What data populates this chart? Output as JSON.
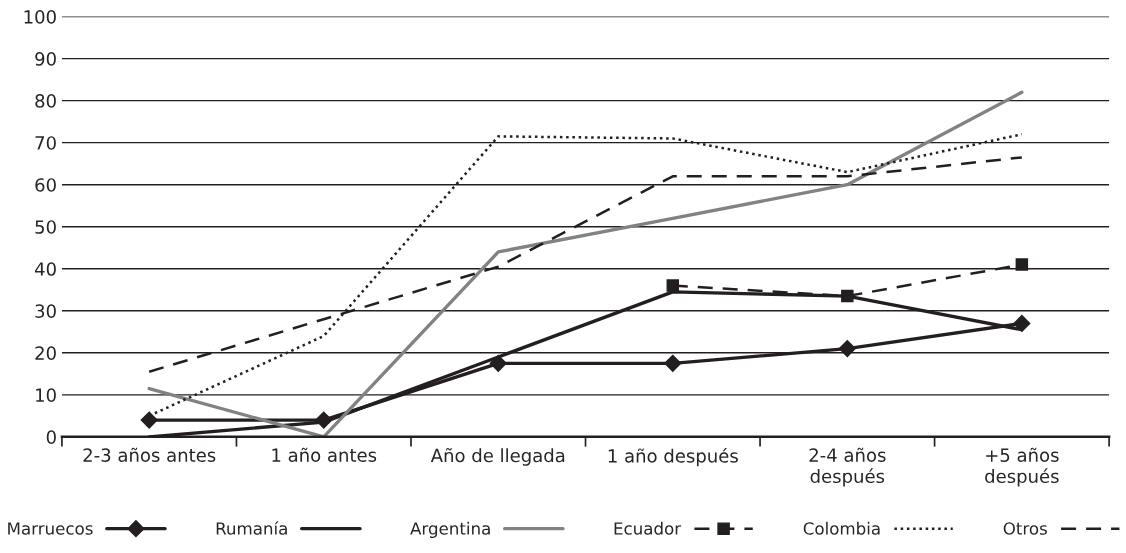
{
  "chart_data": {
    "type": "line",
    "categories": [
      "2-3 años antes",
      "1 año antes",
      "Año de llegada",
      "1 año después",
      "2-4 años\ndespués",
      "+5 años\ndespués"
    ],
    "series": [
      {
        "name": "Marruecos",
        "color": "#231f20",
        "line_style": "solid",
        "marker": "diamond",
        "values": [
          4,
          4,
          17.5,
          17.5,
          21,
          27
        ]
      },
      {
        "name": "Rumanía",
        "color": "#231f20",
        "line_style": "solid",
        "marker": "none",
        "values": [
          0,
          3.5,
          19,
          34.5,
          33.5,
          25.5
        ]
      },
      {
        "name": "Argentina",
        "color": "#808285",
        "line_style": "solid",
        "marker": "none",
        "values": [
          11.5,
          0,
          44,
          52,
          60,
          82
        ]
      },
      {
        "name": "Ecuador",
        "color": "#231f20",
        "line_style": "dashed",
        "marker": "square",
        "values": [
          null,
          null,
          null,
          36,
          33.5,
          41
        ]
      },
      {
        "name": "Colombia",
        "color": "#231f20",
        "line_style": "dotted",
        "marker": "none",
        "values": [
          5,
          24,
          71.5,
          71,
          63,
          72
        ]
      },
      {
        "name": "Otros",
        "color": "#231f20",
        "line_style": "dashed",
        "marker": "none",
        "values": [
          15.5,
          28,
          40.5,
          62,
          62,
          66.5
        ]
      }
    ],
    "ylim": [
      0,
      100
    ],
    "yticks": [
      0,
      10,
      20,
      30,
      40,
      50,
      60,
      70,
      80,
      90,
      100
    ],
    "grid": "y",
    "legend": "bottom"
  }
}
